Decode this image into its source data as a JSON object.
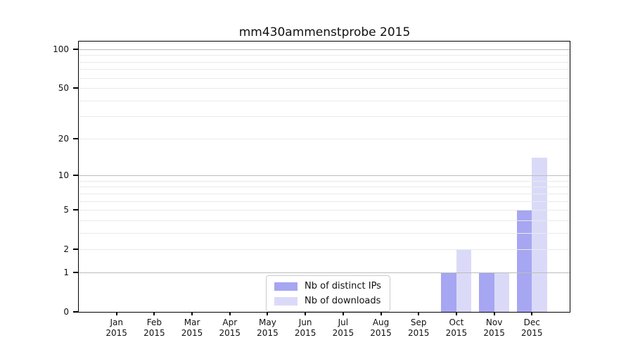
{
  "chart_data": {
    "type": "bar",
    "title": "mm430ammenstprobe 2015",
    "categories": [
      "Jan",
      "Feb",
      "Mar",
      "Apr",
      "May",
      "Jun",
      "Jul",
      "Aug",
      "Sep",
      "Oct",
      "Nov",
      "Dec"
    ],
    "category_year": "2015",
    "series": [
      {
        "name": "Nb of distinct IPs",
        "color": "#a6a6f2",
        "values": [
          0,
          0,
          0,
          0,
          0,
          0,
          0,
          0,
          0,
          1,
          1,
          5
        ]
      },
      {
        "name": "Nb of downloads",
        "color": "#dadaf8",
        "values": [
          0,
          0,
          0,
          0,
          0,
          0,
          0,
          0,
          0,
          2,
          1,
          14
        ]
      }
    ],
    "xlabel": "",
    "ylabel": "",
    "y_axis": {
      "scale": "log1p",
      "tick_values": [
        0,
        1,
        2,
        5,
        10,
        20,
        50,
        100
      ],
      "major_grid_values": [
        1,
        10,
        100
      ],
      "minor_grid_values": [
        2,
        3,
        4,
        5,
        6,
        7,
        8,
        9,
        20,
        30,
        40,
        50,
        60,
        70,
        80,
        90
      ],
      "ylim": [
        0,
        115
      ]
    },
    "legend": {
      "position": "lower center"
    },
    "grid": true,
    "colors": {
      "major_grid": "#bcbcbc",
      "minor_grid": "#eaeaea",
      "axis": "#000000",
      "legend_border": "#cccccc",
      "background": "#ffffff"
    }
  }
}
